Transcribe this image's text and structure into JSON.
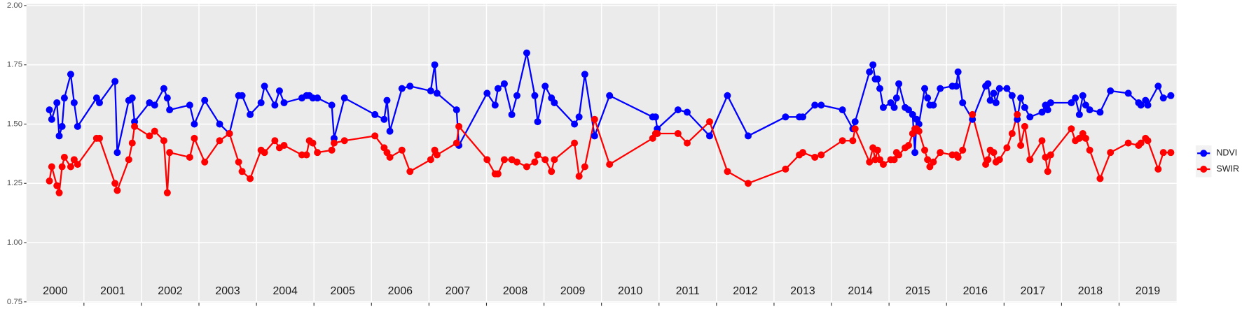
{
  "chart_data": {
    "type": "line",
    "xlim": [
      2000,
      2020
    ],
    "ylim": [
      0.75,
      2.0
    ],
    "yticks": [
      0.75,
      {
        "value": 1.0,
        "label": "1.00"
      },
      1.25,
      {
        "value": 1.5,
        "label": "1.50"
      },
      1.75,
      {
        "value": 2.0,
        "label": "2.00"
      }
    ],
    "xticks": [
      2001,
      2002,
      2003,
      2004,
      2005,
      2006,
      2007,
      2008,
      2009,
      2010,
      2011,
      2012,
      2013,
      2014,
      2015,
      2016,
      2017,
      2018,
      2019
    ],
    "grid": true,
    "legend": "right",
    "year_labels": [
      {
        "label": "2000",
        "x": 2000.5
      },
      {
        "label": "2001",
        "x": 2001.5
      },
      {
        "label": "2002",
        "x": 2002.5
      },
      {
        "label": "2003",
        "x": 2003.5
      },
      {
        "label": "2004",
        "x": 2004.5
      },
      {
        "label": "2005",
        "x": 2005.5
      },
      {
        "label": "2006",
        "x": 2006.5
      },
      {
        "label": "2007",
        "x": 2007.5
      },
      {
        "label": "2008",
        "x": 2008.5
      },
      {
        "label": "2009",
        "x": 2009.5
      },
      {
        "label": "2010",
        "x": 2010.5
      },
      {
        "label": "2011",
        "x": 2011.5
      },
      {
        "label": "2012",
        "x": 2012.5
      },
      {
        "label": "2013",
        "x": 2013.5
      },
      {
        "label": "2014",
        "x": 2014.5
      },
      {
        "label": "2015",
        "x": 2015.5
      },
      {
        "label": "2016",
        "x": 2016.5
      },
      {
        "label": "2017",
        "x": 2017.5
      },
      {
        "label": "2018",
        "x": 2018.5
      },
      {
        "label": "2019",
        "x": 2019.5
      }
    ],
    "x": [
      2000.4,
      2000.44,
      2000.53,
      2000.57,
      2000.62,
      2000.66,
      2000.77,
      2000.83,
      2000.89,
      2001.22,
      2001.27,
      2001.54,
      2001.58,
      2001.78,
      2001.84,
      2001.88,
      2002.14,
      2002.23,
      2002.39,
      2002.45,
      2002.49,
      2002.84,
      2002.92,
      2003.1,
      2003.36,
      2003.53,
      2003.69,
      2003.75,
      2003.89,
      2004.08,
      2004.14,
      2004.32,
      2004.4,
      2004.48,
      2004.79,
      2004.87,
      2004.92,
      2004.98,
      2005.06,
      2005.31,
      2005.35,
      2005.53,
      2006.06,
      2006.22,
      2006.27,
      2006.32,
      2006.53,
      2006.67,
      2007.03,
      2007.1,
      2007.14,
      2007.48,
      2007.52,
      2008.01,
      2008.15,
      2008.2,
      2008.31,
      2008.44,
      2008.53,
      2008.7,
      2008.84,
      2008.89,
      2009.02,
      2009.13,
      2009.18,
      2009.53,
      2009.61,
      2009.71,
      2009.88,
      2010.14,
      2010.89,
      2010.94,
      2010.97,
      2011.33,
      2011.49,
      2011.88,
      2012.19,
      2012.55,
      2013.2,
      2013.44,
      2013.5,
      2013.71,
      2013.82,
      2014.19,
      2014.37,
      2014.41,
      2014.66,
      2014.72,
      2014.76,
      2014.8,
      2014.84,
      2014.9,
      2015.03,
      2015.09,
      2015.13,
      2015.17,
      2015.28,
      2015.34,
      2015.41,
      2015.45,
      2015.48,
      2015.52,
      2015.62,
      2015.67,
      2015.71,
      2015.77,
      2015.89,
      2016.1,
      2016.17,
      2016.2,
      2016.28,
      2016.45,
      2016.68,
      2016.72,
      2016.76,
      2016.82,
      2016.86,
      2016.92,
      2017.05,
      2017.14,
      2017.23,
      2017.29,
      2017.36,
      2017.45,
      2017.66,
      2017.72,
      2017.76,
      2017.81,
      2018.17,
      2018.24,
      2018.31,
      2018.37,
      2018.42,
      2018.49,
      2018.67,
      2018.85,
      2019.16,
      2019.34,
      2019.38,
      2019.46,
      2019.5,
      2019.68,
      2019.77,
      2019.9
    ],
    "series": [
      {
        "name": "NDVI",
        "color": "#0000ff",
        "values": [
          1.56,
          1.52,
          1.59,
          1.45,
          1.49,
          1.61,
          1.71,
          1.59,
          1.49,
          1.61,
          1.59,
          1.68,
          1.38,
          1.6,
          1.61,
          1.51,
          1.59,
          1.58,
          1.65,
          1.61,
          1.56,
          1.58,
          1.5,
          1.6,
          1.5,
          1.46,
          1.62,
          1.62,
          1.54,
          1.59,
          1.66,
          1.58,
          1.64,
          1.59,
          1.61,
          1.62,
          1.62,
          1.61,
          1.61,
          1.58,
          1.44,
          1.61,
          1.54,
          1.52,
          1.6,
          1.47,
          1.65,
          1.66,
          1.64,
          1.75,
          1.63,
          1.56,
          1.41,
          1.63,
          1.58,
          1.65,
          1.67,
          1.54,
          1.62,
          1.8,
          1.62,
          1.51,
          1.66,
          1.61,
          1.59,
          1.5,
          1.53,
          1.71,
          1.45,
          1.62,
          1.53,
          1.53,
          1.48,
          1.56,
          1.55,
          1.45,
          1.62,
          1.45,
          1.53,
          1.53,
          1.53,
          1.58,
          1.58,
          1.56,
          1.48,
          1.51,
          1.72,
          1.75,
          1.69,
          1.69,
          1.65,
          1.57,
          1.59,
          1.57,
          1.61,
          1.67,
          1.57,
          1.56,
          1.54,
          1.38,
          1.52,
          1.5,
          1.65,
          1.61,
          1.58,
          1.58,
          1.65,
          1.66,
          1.66,
          1.72,
          1.59,
          1.52,
          1.66,
          1.67,
          1.6,
          1.63,
          1.59,
          1.65,
          1.65,
          1.62,
          1.52,
          1.61,
          1.57,
          1.53,
          1.55,
          1.58,
          1.56,
          1.59,
          1.59,
          1.61,
          1.54,
          1.62,
          1.58,
          1.56,
          1.55,
          1.64,
          1.63,
          1.59,
          1.58,
          1.6,
          1.58,
          1.66,
          1.61,
          1.62
        ]
      },
      {
        "name": "SWIR",
        "color": "#ff0000",
        "values": [
          1.26,
          1.32,
          1.24,
          1.21,
          1.32,
          1.36,
          1.32,
          1.35,
          1.33,
          1.44,
          1.44,
          1.25,
          1.22,
          1.35,
          1.42,
          1.49,
          1.45,
          1.47,
          1.43,
          1.21,
          1.38,
          1.36,
          1.44,
          1.34,
          1.43,
          1.46,
          1.34,
          1.3,
          1.27,
          1.39,
          1.38,
          1.43,
          1.4,
          1.41,
          1.37,
          1.37,
          1.43,
          1.42,
          1.38,
          1.39,
          1.42,
          1.43,
          1.45,
          1.4,
          1.38,
          1.36,
          1.39,
          1.3,
          1.35,
          1.39,
          1.37,
          1.42,
          1.49,
          1.35,
          1.29,
          1.29,
          1.35,
          1.35,
          1.34,
          1.32,
          1.34,
          1.37,
          1.35,
          1.3,
          1.35,
          1.42,
          1.28,
          1.32,
          1.52,
          1.33,
          1.44,
          1.46,
          1.46,
          1.46,
          1.42,
          1.51,
          1.3,
          1.25,
          1.31,
          1.37,
          1.38,
          1.36,
          1.37,
          1.43,
          1.43,
          1.48,
          1.34,
          1.4,
          1.35,
          1.39,
          1.35,
          1.33,
          1.35,
          1.35,
          1.38,
          1.37,
          1.4,
          1.41,
          1.46,
          1.48,
          1.48,
          1.47,
          1.39,
          1.35,
          1.32,
          1.34,
          1.38,
          1.37,
          1.37,
          1.36,
          1.39,
          1.54,
          1.33,
          1.35,
          1.39,
          1.38,
          1.34,
          1.35,
          1.4,
          1.46,
          1.54,
          1.41,
          1.49,
          1.35,
          1.43,
          1.36,
          1.3,
          1.37,
          1.48,
          1.43,
          1.44,
          1.46,
          1.44,
          1.39,
          1.27,
          1.38,
          1.42,
          1.41,
          1.42,
          1.44,
          1.43,
          1.31,
          1.38,
          1.38
        ]
      }
    ]
  }
}
